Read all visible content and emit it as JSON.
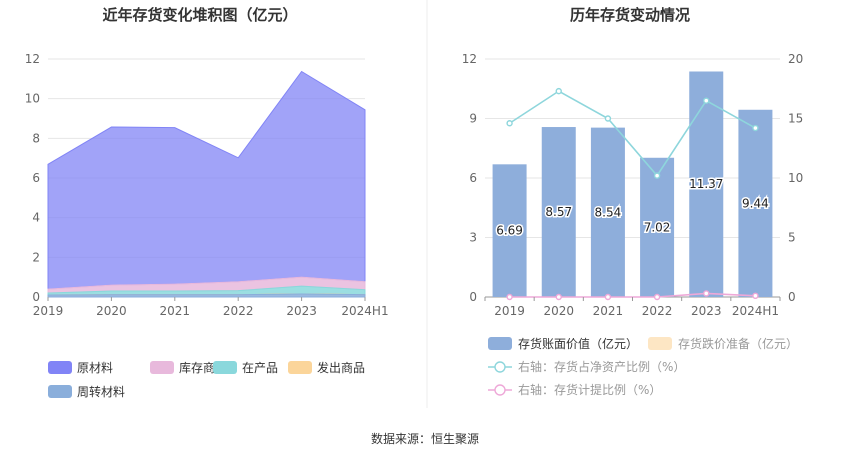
{
  "colors": {
    "raw": "#8184f6",
    "finished": "#e8b9dc",
    "wip": "#8ad8dc",
    "shipped": "#fbd59a",
    "turnover": "#8aaedb",
    "book_bar": "#8eaedb",
    "impairment_bar": "#fde6c4",
    "ratio_line": "#8ed6dc",
    "provision_line": "#eea8d8",
    "axis": "#999999",
    "grid": "#e6e6e6",
    "divider": "#eeeeee"
  },
  "source_text": "数据来源：恒生聚源",
  "chart_data": [
    {
      "type": "area",
      "stacked": true,
      "title": "近年存货变化堆积图（亿元）",
      "categories": [
        "2019",
        "2020",
        "2021",
        "2022",
        "2023",
        "2024H1"
      ],
      "ylim": [
        0,
        12
      ],
      "y_ticks": [
        "0",
        "2",
        "4",
        "6",
        "8",
        "10",
        "12"
      ],
      "grid": true,
      "legend_position": "bottom",
      "series": [
        {
          "name": "周转材料",
          "color_key": "turnover",
          "values": [
            0.1,
            0.12,
            0.12,
            0.12,
            0.15,
            0.12
          ]
        },
        {
          "name": "发出商品",
          "color_key": "shipped",
          "values": [
            0.0,
            0.0,
            0.0,
            0.0,
            0.0,
            0.0
          ]
        },
        {
          "name": "在产品",
          "color_key": "wip",
          "values": [
            0.1,
            0.18,
            0.18,
            0.2,
            0.4,
            0.25
          ]
        },
        {
          "name": "库存商品",
          "color_key": "finished",
          "values": [
            0.2,
            0.3,
            0.35,
            0.45,
            0.45,
            0.4
          ]
        },
        {
          "name": "原材料",
          "color_key": "raw",
          "values": [
            6.29,
            7.97,
            7.89,
            6.25,
            10.37,
            8.67
          ]
        }
      ],
      "legend_order": [
        "原材料",
        "库存商品",
        "在产品",
        "发出商品",
        "周转材料"
      ]
    },
    {
      "type": "bar",
      "title": "历年存货变动情况",
      "categories": [
        "2019",
        "2020",
        "2021",
        "2022",
        "2023",
        "2024H1"
      ],
      "ylim": [
        0,
        12
      ],
      "y_ticks": [
        "0",
        "3",
        "6",
        "9",
        "12"
      ],
      "y2lim": [
        0,
        20
      ],
      "y2_ticks": [
        "0",
        "5",
        "10",
        "15",
        "20"
      ],
      "grid": true,
      "legend_position": "bottom",
      "bars": [
        {
          "name": "存货账面价值（亿元）",
          "color_key": "book_bar",
          "values": [
            6.69,
            8.57,
            8.54,
            7.02,
            11.37,
            9.44
          ],
          "labels": [
            "6.69",
            "8.57",
            "8.54",
            "7.02",
            "11.37",
            "9.44"
          ]
        },
        {
          "name": "存货跌价准备（亿元）",
          "color_key": "impairment_bar",
          "values": [
            0,
            0,
            0,
            0,
            0,
            0
          ]
        }
      ],
      "lines": [
        {
          "name": "右轴：存货占净资产比例（%）",
          "color_key": "ratio_line",
          "axis": "right",
          "values": [
            14.6,
            17.3,
            15.0,
            10.2,
            16.5,
            14.2
          ]
        },
        {
          "name": "右轴：存货计提比例（%）",
          "color_key": "provision_line",
          "axis": "right",
          "values": [
            0.0,
            0.0,
            0.0,
            0.0,
            0.3,
            0.1
          ]
        }
      ]
    }
  ]
}
